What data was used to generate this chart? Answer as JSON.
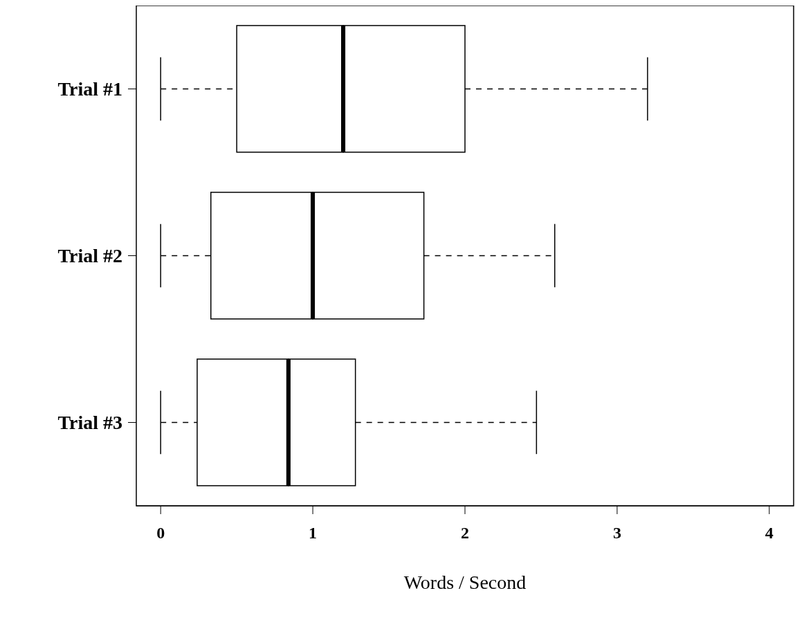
{
  "chart_data": {
    "type": "box",
    "orientation": "horizontal",
    "categories": [
      "Trial #1",
      "Trial #2",
      "Trial #3"
    ],
    "boxes": [
      {
        "low": 0,
        "q1": 0.5,
        "median": 1.2,
        "q3": 2.0,
        "high": 3.2
      },
      {
        "low": 0,
        "q1": 0.33,
        "median": 1.0,
        "q3": 1.73,
        "high": 2.59
      },
      {
        "low": 0,
        "q1": 0.24,
        "median": 0.84,
        "q3": 1.28,
        "high": 2.47
      }
    ],
    "xlabel": "Words / Second",
    "xlim": [
      -0.16,
      4.16
    ],
    "xticks": [
      0,
      1,
      2,
      3,
      4
    ],
    "color": "#000000",
    "grid": false,
    "legend": false
  }
}
